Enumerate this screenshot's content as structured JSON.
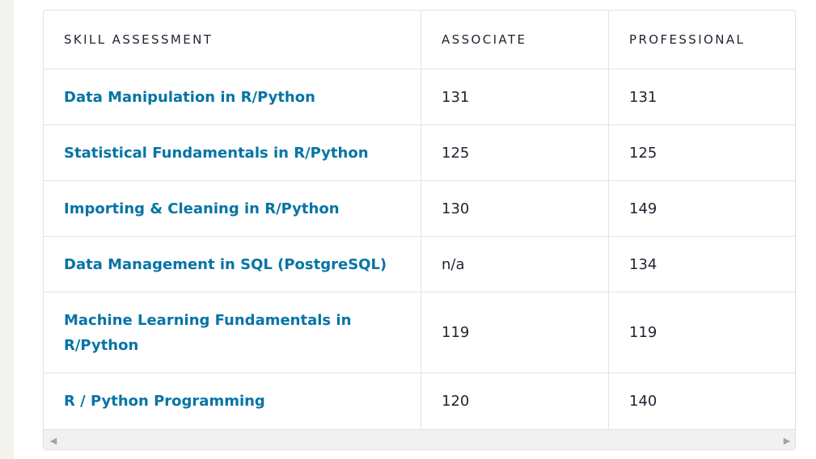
{
  "table": {
    "headers": [
      "SKILL ASSESSMENT",
      "ASSOCIATE",
      "PROFESSIONAL"
    ],
    "rows": [
      {
        "skill": "Data Manipulation in R/Python",
        "associate": "131",
        "professional": "131"
      },
      {
        "skill": "Statistical Fundamentals in R/Python",
        "associate": "125",
        "professional": "125"
      },
      {
        "skill": "Importing & Cleaning in R/Python",
        "associate": "130",
        "professional": "149"
      },
      {
        "skill": "Data Management in SQL (PostgreSQL)",
        "associate": "n/a",
        "professional": "134"
      },
      {
        "skill": "Machine Learning Fundamentals in R/Python",
        "associate": "119",
        "professional": "119"
      },
      {
        "skill": "R / Python Programming",
        "associate": "120",
        "professional": "140"
      }
    ]
  },
  "scrollbar": {
    "left_arrow_icon": "triangle-left-icon",
    "right_arrow_icon": "triangle-right-icon",
    "left_glyph": "◀",
    "right_glyph": "▶"
  }
}
